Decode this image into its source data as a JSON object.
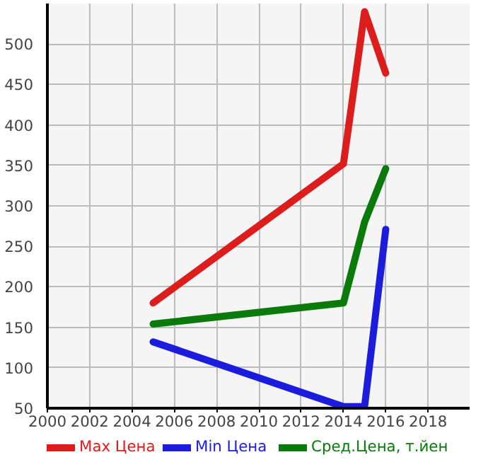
{
  "chart_data": {
    "type": "line",
    "x": [
      2005,
      2014,
      2015,
      2016
    ],
    "series": [
      {
        "name": "Max Цена",
        "color": "#dd1c1c",
        "values": [
          180,
          352,
          540,
          464
        ]
      },
      {
        "name": "Min Цена",
        "color": "#1c1cdd",
        "values": [
          132,
          52,
          52,
          271
        ]
      },
      {
        "name": "Сред.Цена, т.йен",
        "color": "#0a7a0a",
        "values": [
          154,
          180,
          280,
          346
        ]
      }
    ],
    "xlim": [
      2000,
      2020
    ],
    "xticks": [
      2000,
      2002,
      2004,
      2006,
      2008,
      2010,
      2012,
      2014,
      2016,
      2018
    ],
    "ylim": [
      50,
      550
    ],
    "yticks": [
      50,
      100,
      150,
      200,
      250,
      300,
      350,
      400,
      450,
      500
    ],
    "grid": true,
    "legend": "bottom",
    "marker": "none",
    "line_style": "solid"
  }
}
